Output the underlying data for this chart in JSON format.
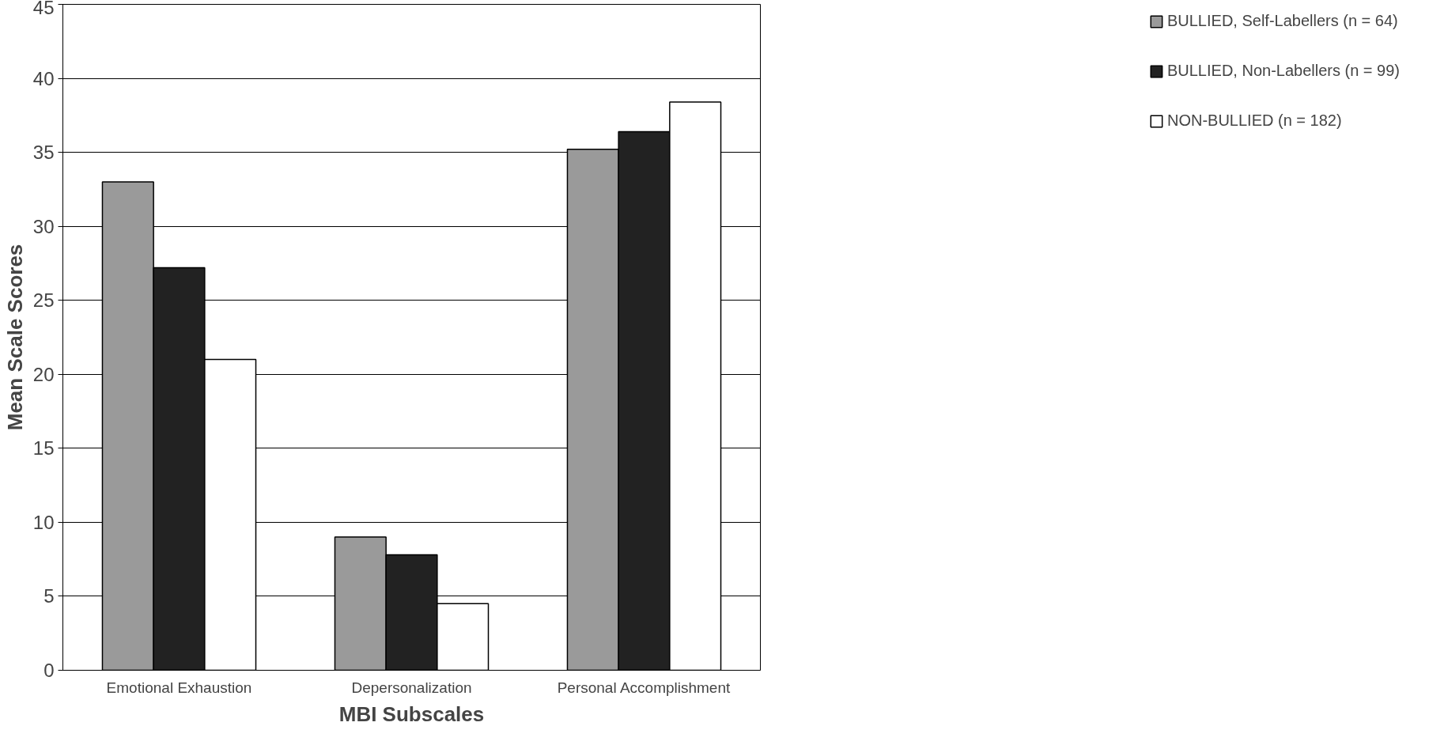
{
  "chart_data": {
    "type": "bar",
    "xlabel": "MBI Subscales",
    "ylabel": "Mean Scale Scores",
    "categories": [
      "Emotional Exhaustion",
      "Depersonalization",
      "Personal Accomplishment"
    ],
    "series": [
      {
        "name": "BULLIED, Self-Labellers (n = 64)",
        "color": "#9a9a9a",
        "values": [
          33.0,
          9.0,
          35.2
        ]
      },
      {
        "name": "BULLIED, Non-Labellers (n = 99)",
        "color": "#222222",
        "values": [
          27.2,
          7.8,
          36.4
        ]
      },
      {
        "name": "NON-BULLIED (n = 182)",
        "color": "#ffffff",
        "values": [
          21.0,
          4.5,
          38.4
        ]
      }
    ],
    "ylim": [
      0,
      45
    ],
    "yticks": [
      0,
      5,
      10,
      15,
      20,
      25,
      30,
      35,
      40,
      45
    ],
    "grid": "y",
    "legend": "right"
  }
}
